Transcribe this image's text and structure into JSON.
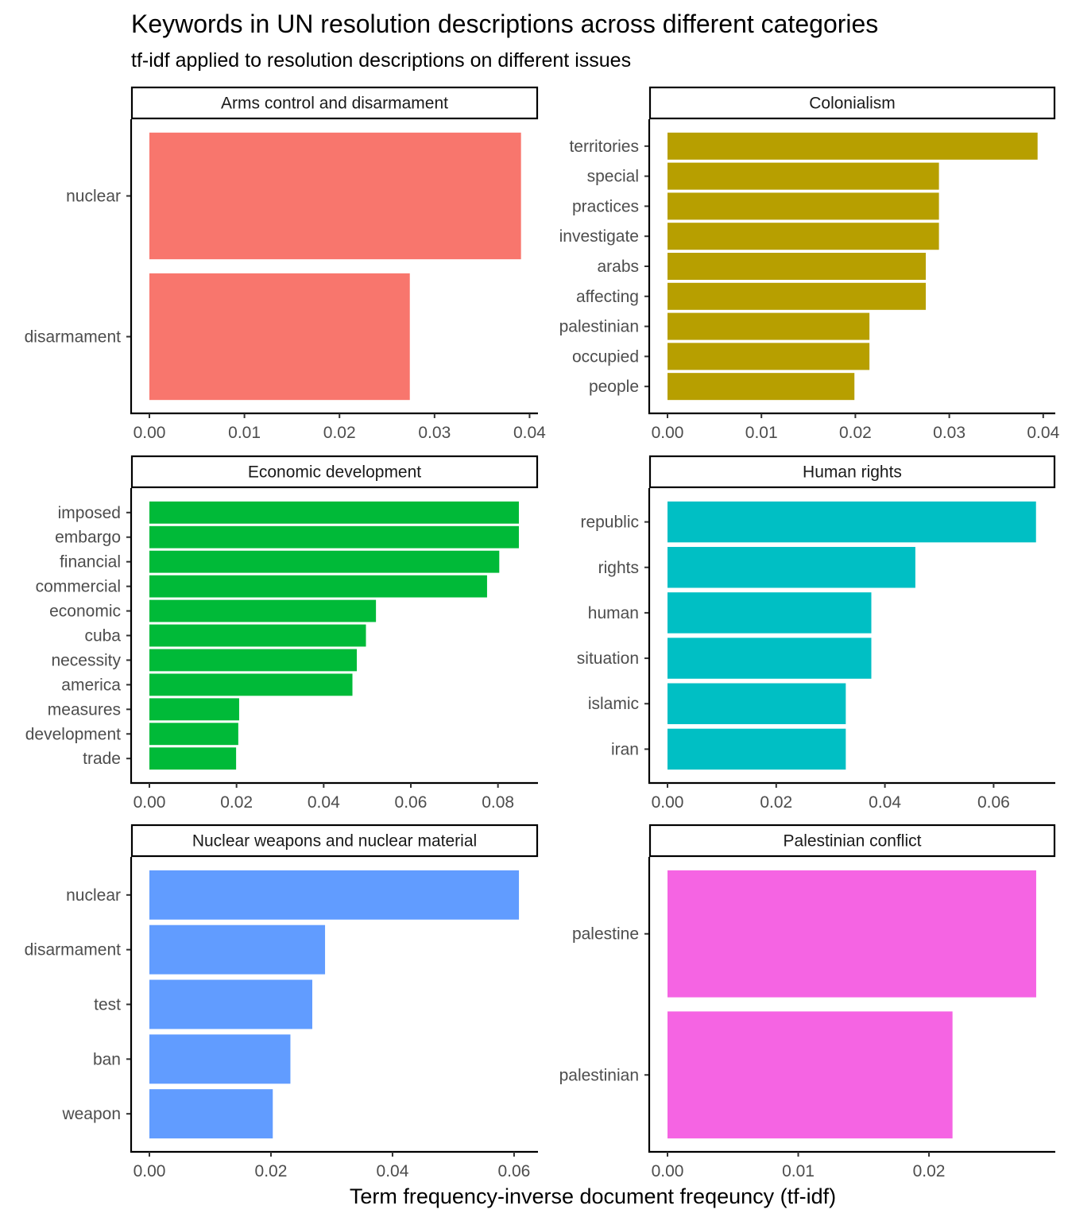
{
  "chart_data": {
    "type": "bar",
    "orientation": "horizontal",
    "title": "Keywords in UN resolution descriptions across different categories",
    "subtitle": "tf-idf applied to resolution descriptions on different issues",
    "xlabel": "Term frequency-inverse document freqeuncy (tf-idf)",
    "ylabel": "",
    "grid": false,
    "legend": "none",
    "panels": [
      {
        "name": "Arms control and disarmament",
        "color": "#F8766D",
        "xlim": [
          0,
          0.0408
        ],
        "ticks": [
          0,
          0.01,
          0.02,
          0.03,
          0.04
        ],
        "tick_labels": [
          "0.00",
          "0.01",
          "0.02",
          "0.03",
          "0.04"
        ],
        "categories": [
          "nuclear",
          "disarmament"
        ],
        "values": [
          0.0391,
          0.0274
        ]
      },
      {
        "name": "Colonialism",
        "color": "#B79F00",
        "xlim": [
          0,
          0.0412
        ],
        "ticks": [
          0,
          0.01,
          0.02,
          0.03,
          0.04
        ],
        "tick_labels": [
          "0.00",
          "0.01",
          "0.02",
          "0.03",
          "0.04"
        ],
        "categories": [
          "territories",
          "special",
          "practices",
          "investigate",
          "arabs",
          "affecting",
          "palestinian",
          "occupied",
          "people"
        ],
        "values": [
          0.0394,
          0.0289,
          0.0289,
          0.0289,
          0.0275,
          0.0275,
          0.0215,
          0.0215,
          0.0199
        ]
      },
      {
        "name": "Economic development",
        "color": "#00BA38",
        "xlim": [
          0,
          0.089
        ],
        "ticks": [
          0,
          0.02,
          0.04,
          0.06,
          0.08
        ],
        "tick_labels": [
          "0.00",
          "0.02",
          "0.04",
          "0.06",
          "0.08"
        ],
        "categories": [
          "imposed",
          "embargo",
          "financial",
          "commercial",
          "economic",
          "cuba",
          "necessity",
          "america",
          "measures",
          "development",
          "trade"
        ],
        "values": [
          0.0848,
          0.0848,
          0.0803,
          0.0775,
          0.052,
          0.0497,
          0.0476,
          0.0466,
          0.0206,
          0.0204,
          0.0199
        ]
      },
      {
        "name": "Human rights",
        "color": "#00BFC4",
        "xlim": [
          0,
          0.0712
        ],
        "ticks": [
          0,
          0.02,
          0.04,
          0.06
        ],
        "tick_labels": [
          "0.00",
          "0.02",
          "0.04",
          "0.06"
        ],
        "categories": [
          "republic",
          "rights",
          "human",
          "situation",
          "islamic",
          "iran"
        ],
        "values": [
          0.0678,
          0.0456,
          0.0375,
          0.0375,
          0.0328,
          0.0328
        ]
      },
      {
        "name": "Nuclear weapons and nuclear material",
        "color": "#619CFF",
        "xlim": [
          0,
          0.0638
        ],
        "ticks": [
          0,
          0.02,
          0.04,
          0.06
        ],
        "tick_labels": [
          "0.00",
          "0.02",
          "0.04",
          "0.06"
        ],
        "categories": [
          "nuclear",
          "disarmament",
          "test",
          "ban",
          "weapon"
        ],
        "values": [
          0.0608,
          0.0289,
          0.0268,
          0.0232,
          0.0203
        ]
      },
      {
        "name": "Palestinian conflict",
        "color": "#F564E3",
        "xlim": [
          0,
          0.0296
        ],
        "ticks": [
          0,
          0.01,
          0.02
        ],
        "tick_labels": [
          "0.00",
          "0.01",
          "0.02"
        ],
        "categories": [
          "palestine",
          "palestinian"
        ],
        "values": [
          0.0282,
          0.0218
        ]
      }
    ]
  }
}
